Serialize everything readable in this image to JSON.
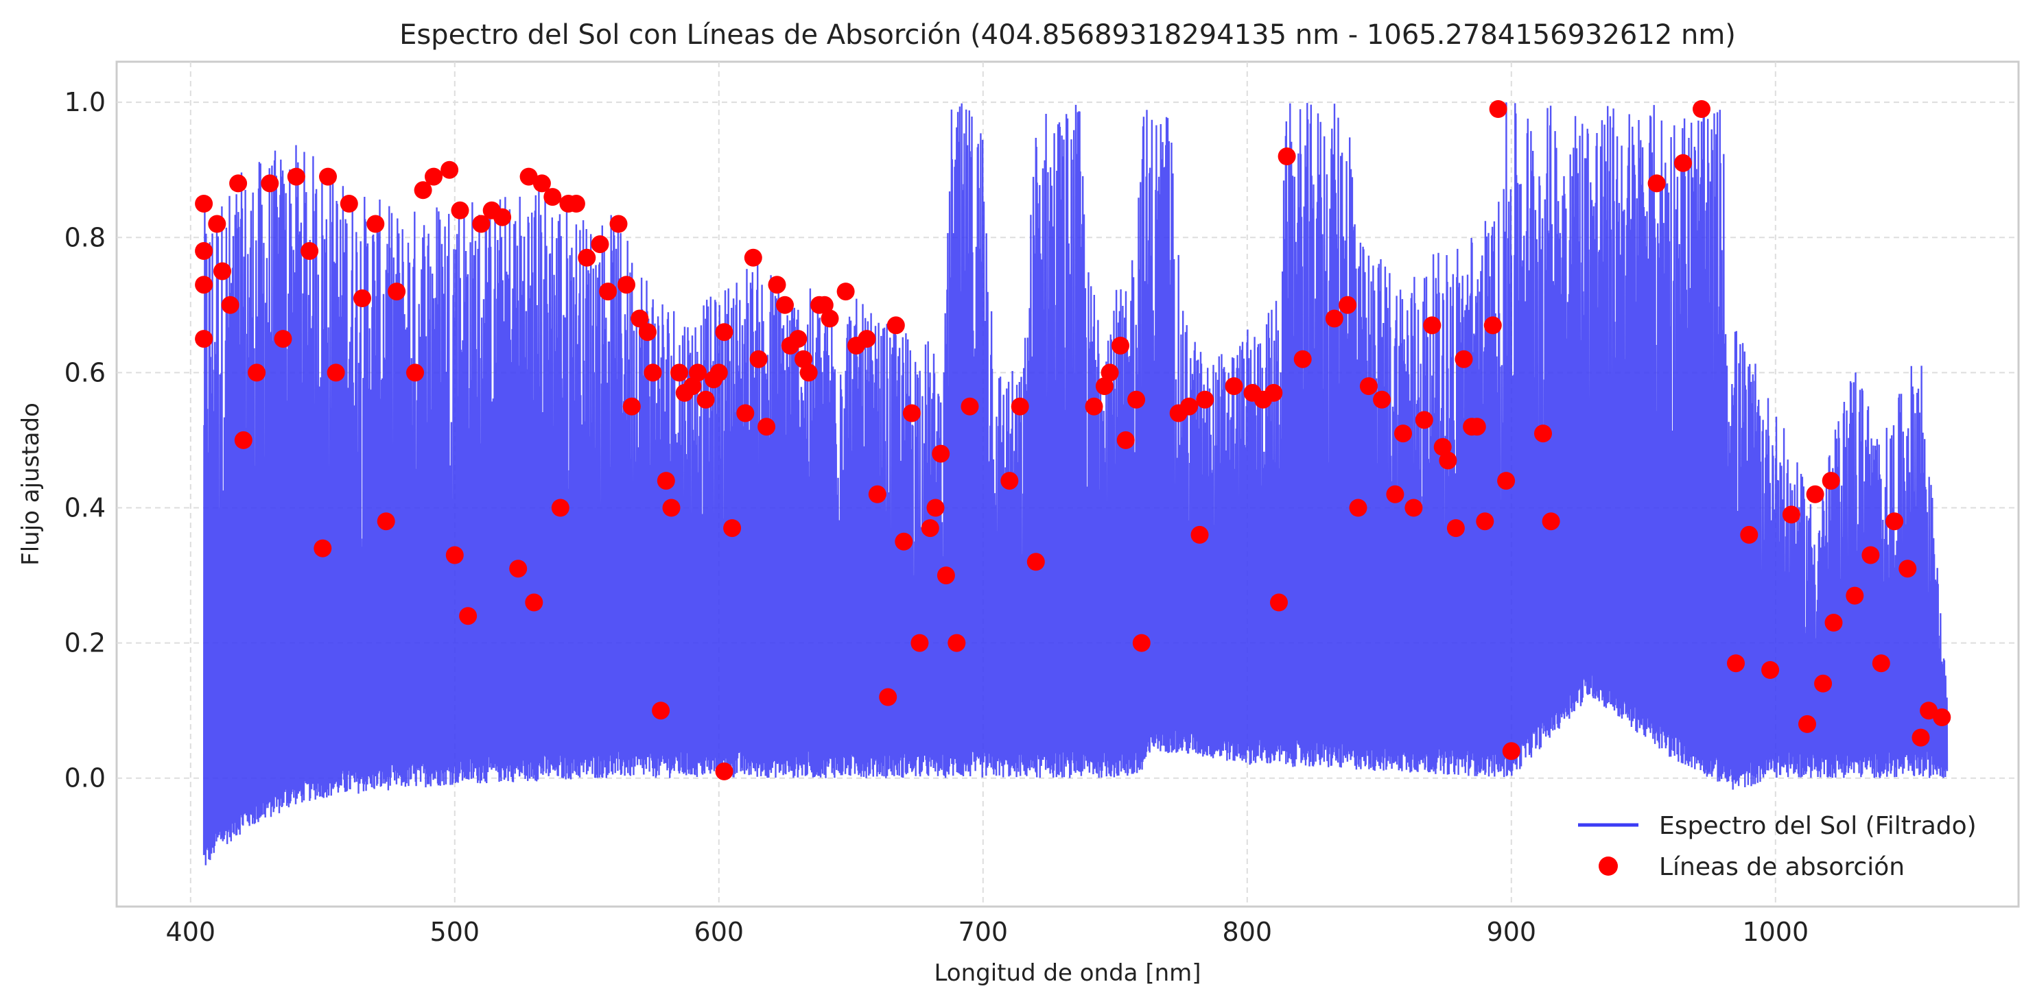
{
  "chart_data": {
    "type": "line",
    "title": "Espectro del Sol con Líneas de Absorción (404.85689318294135 nm - 1065.2784156932612 nm)",
    "xlabel": "Longitud de onda [nm]",
    "ylabel": "Flujo ajustado",
    "xlim": [
      372,
      1092
    ],
    "ylim": [
      -0.19,
      1.06
    ],
    "xticks": [
      400,
      500,
      600,
      700,
      800,
      900,
      1000
    ],
    "xtick_labels": [
      "400",
      "500",
      "600",
      "700",
      "800",
      "900",
      "1000"
    ],
    "yticks": [
      0.0,
      0.2,
      0.4,
      0.6,
      0.8,
      1.0
    ],
    "ytick_labels": [
      "0.0",
      "0.2",
      "0.4",
      "0.6",
      "0.8",
      "1.0"
    ],
    "grid": true,
    "legend_position": "lower-right",
    "series": [
      {
        "name": "Espectro del Sol (Filtrado)",
        "kind": "line",
        "color": "#3c3cf5",
        "upper_envelope": [
          [
            405,
            0.85
          ],
          [
            410,
            0.86
          ],
          [
            420,
            0.9
          ],
          [
            430,
            0.93
          ],
          [
            440,
            0.94
          ],
          [
            450,
            0.92
          ],
          [
            460,
            0.88
          ],
          [
            470,
            0.86
          ],
          [
            480,
            0.84
          ],
          [
            490,
            0.86
          ],
          [
            500,
            0.88
          ],
          [
            510,
            0.86
          ],
          [
            520,
            0.87
          ],
          [
            530,
            0.89
          ],
          [
            540,
            0.87
          ],
          [
            550,
            0.83
          ],
          [
            560,
            0.84
          ],
          [
            570,
            0.78
          ],
          [
            580,
            0.72
          ],
          [
            590,
            0.7
          ],
          [
            600,
            0.72
          ],
          [
            610,
            0.77
          ],
          [
            620,
            0.76
          ],
          [
            630,
            0.73
          ],
          [
            640,
            0.72
          ],
          [
            650,
            0.72
          ],
          [
            660,
            0.68
          ],
          [
            670,
            0.67
          ],
          [
            680,
            0.65
          ],
          [
            685,
            0.6
          ],
          [
            688,
            1.0
          ],
          [
            700,
            1.0
          ],
          [
            705,
            0.62
          ],
          [
            715,
            0.6
          ],
          [
            720,
            1.0
          ],
          [
            737,
            1.0
          ],
          [
            740,
            0.75
          ],
          [
            755,
            0.72
          ],
          [
            760,
            1.0
          ],
          [
            771,
            1.0
          ],
          [
            775,
            0.7
          ],
          [
            785,
            0.62
          ],
          [
            795,
            0.65
          ],
          [
            805,
            0.68
          ],
          [
            812,
            0.72
          ],
          [
            815,
            1.0
          ],
          [
            840,
            1.0
          ],
          [
            842,
            0.8
          ],
          [
            860,
            0.75
          ],
          [
            880,
            0.8
          ],
          [
            895,
            0.85
          ],
          [
            897,
            1.0
          ],
          [
            926,
            1.0
          ],
          [
            928,
            1.0
          ],
          [
            980,
            1.0
          ],
          [
            982,
            0.7
          ],
          [
            1000,
            0.55
          ],
          [
            1015,
            0.4
          ],
          [
            1030,
            0.63
          ],
          [
            1040,
            0.5
          ],
          [
            1055,
            0.65
          ],
          [
            1065,
            0.12
          ]
        ],
        "lower_envelope": [
          [
            405,
            -0.14
          ],
          [
            410,
            -0.11
          ],
          [
            420,
            -0.08
          ],
          [
            430,
            -0.06
          ],
          [
            440,
            -0.04
          ],
          [
            450,
            -0.03
          ],
          [
            470,
            -0.02
          ],
          [
            500,
            -0.01
          ],
          [
            560,
            0.0
          ],
          [
            700,
            0.0
          ],
          [
            760,
            0.0
          ],
          [
            765,
            0.04
          ],
          [
            800,
            0.02
          ],
          [
            900,
            0.0
          ],
          [
            930,
            0.12
          ],
          [
            960,
            0.03
          ],
          [
            985,
            -0.02
          ],
          [
            1000,
            0.0
          ],
          [
            1065,
            0.0
          ]
        ]
      },
      {
        "name": "Líneas de absorción",
        "kind": "scatter",
        "color": "#ff0000",
        "points": [
          [
            405,
            0.85
          ],
          [
            405,
            0.78
          ],
          [
            405,
            0.73
          ],
          [
            405,
            0.65
          ],
          [
            410,
            0.82
          ],
          [
            412,
            0.75
          ],
          [
            415,
            0.7
          ],
          [
            418,
            0.88
          ],
          [
            420,
            0.5
          ],
          [
            425,
            0.6
          ],
          [
            430,
            0.88
          ],
          [
            435,
            0.65
          ],
          [
            440,
            0.89
          ],
          [
            445,
            0.78
          ],
          [
            450,
            0.34
          ],
          [
            452,
            0.89
          ],
          [
            455,
            0.6
          ],
          [
            460,
            0.85
          ],
          [
            465,
            0.71
          ],
          [
            470,
            0.82
          ],
          [
            474,
            0.38
          ],
          [
            478,
            0.72
          ],
          [
            485,
            0.6
          ],
          [
            488,
            0.87
          ],
          [
            492,
            0.89
          ],
          [
            498,
            0.9
          ],
          [
            500,
            0.33
          ],
          [
            502,
            0.84
          ],
          [
            505,
            0.24
          ],
          [
            510,
            0.82
          ],
          [
            514,
            0.84
          ],
          [
            518,
            0.83
          ],
          [
            524,
            0.31
          ],
          [
            528,
            0.89
          ],
          [
            530,
            0.26
          ],
          [
            533,
            0.88
          ],
          [
            537,
            0.86
          ],
          [
            540,
            0.4
          ],
          [
            543,
            0.85
          ],
          [
            546,
            0.85
          ],
          [
            550,
            0.77
          ],
          [
            555,
            0.79
          ],
          [
            558,
            0.72
          ],
          [
            562,
            0.82
          ],
          [
            565,
            0.73
          ],
          [
            567,
            0.55
          ],
          [
            570,
            0.68
          ],
          [
            573,
            0.66
          ],
          [
            575,
            0.6
          ],
          [
            578,
            0.1
          ],
          [
            580,
            0.44
          ],
          [
            582,
            0.4
          ],
          [
            585,
            0.6
          ],
          [
            587,
            0.57
          ],
          [
            590,
            0.58
          ],
          [
            592,
            0.6
          ],
          [
            595,
            0.56
          ],
          [
            598,
            0.59
          ],
          [
            600,
            0.6
          ],
          [
            602,
            0.66
          ],
          [
            602,
            0.01
          ],
          [
            605,
            0.37
          ],
          [
            610,
            0.54
          ],
          [
            613,
            0.77
          ],
          [
            615,
            0.62
          ],
          [
            618,
            0.52
          ],
          [
            622,
            0.73
          ],
          [
            625,
            0.7
          ],
          [
            627,
            0.64
          ],
          [
            630,
            0.65
          ],
          [
            632,
            0.62
          ],
          [
            634,
            0.6
          ],
          [
            638,
            0.7
          ],
          [
            640,
            0.7
          ],
          [
            642,
            0.68
          ],
          [
            648,
            0.72
          ],
          [
            652,
            0.64
          ],
          [
            656,
            0.65
          ],
          [
            660,
            0.42
          ],
          [
            664,
            0.12
          ],
          [
            667,
            0.67
          ],
          [
            670,
            0.35
          ],
          [
            673,
            0.54
          ],
          [
            676,
            0.2
          ],
          [
            680,
            0.37
          ],
          [
            682,
            0.4
          ],
          [
            684,
            0.48
          ],
          [
            686,
            0.3
          ],
          [
            690,
            0.2
          ],
          [
            695,
            0.55
          ],
          [
            710,
            0.44
          ],
          [
            714,
            0.55
          ],
          [
            720,
            0.32
          ],
          [
            742,
            0.55
          ],
          [
            746,
            0.58
          ],
          [
            748,
            0.6
          ],
          [
            752,
            0.64
          ],
          [
            754,
            0.5
          ],
          [
            758,
            0.56
          ],
          [
            760,
            0.2
          ],
          [
            774,
            0.54
          ],
          [
            778,
            0.55
          ],
          [
            782,
            0.36
          ],
          [
            784,
            0.56
          ],
          [
            795,
            0.58
          ],
          [
            802,
            0.57
          ],
          [
            806,
            0.56
          ],
          [
            810,
            0.57
          ],
          [
            812,
            0.26
          ],
          [
            815,
            0.92
          ],
          [
            821,
            0.62
          ],
          [
            833,
            0.68
          ],
          [
            838,
            0.7
          ],
          [
            842,
            0.4
          ],
          [
            846,
            0.58
          ],
          [
            851,
            0.56
          ],
          [
            856,
            0.42
          ],
          [
            859,
            0.51
          ],
          [
            863,
            0.4
          ],
          [
            867,
            0.53
          ],
          [
            870,
            0.67
          ],
          [
            874,
            0.49
          ],
          [
            876,
            0.47
          ],
          [
            879,
            0.37
          ],
          [
            882,
            0.62
          ],
          [
            885,
            0.52
          ],
          [
            887,
            0.52
          ],
          [
            890,
            0.38
          ],
          [
            893,
            0.67
          ],
          [
            895,
            0.99
          ],
          [
            898,
            0.44
          ],
          [
            900,
            0.04
          ],
          [
            912,
            0.51
          ],
          [
            915,
            0.38
          ],
          [
            955,
            0.88
          ],
          [
            965,
            0.91
          ],
          [
            972,
            0.99
          ],
          [
            985,
            0.17
          ],
          [
            990,
            0.36
          ],
          [
            998,
            0.16
          ],
          [
            1006,
            0.39
          ],
          [
            1012,
            0.08
          ],
          [
            1015,
            0.42
          ],
          [
            1018,
            0.14
          ],
          [
            1021,
            0.44
          ],
          [
            1022,
            0.23
          ],
          [
            1030,
            0.27
          ],
          [
            1036,
            0.33
          ],
          [
            1040,
            0.17
          ],
          [
            1045,
            0.38
          ],
          [
            1050,
            0.31
          ],
          [
            1055,
            0.06
          ],
          [
            1058,
            0.1
          ],
          [
            1063,
            0.09
          ]
        ]
      }
    ]
  }
}
